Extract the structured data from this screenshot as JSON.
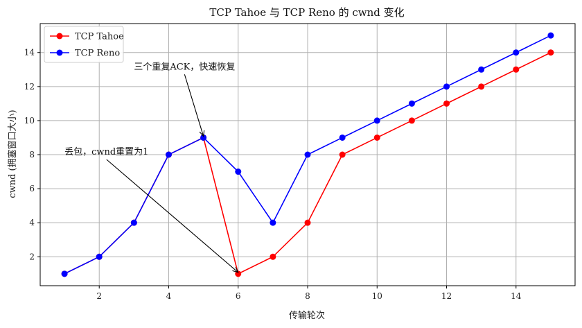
{
  "chart_data": {
    "type": "line",
    "title": "TCP Tahoe 与 TCP Reno 的 cwnd 变化",
    "xlabel": "传输轮次",
    "ylabel": "cwnd (拥塞窗口大小)",
    "xlim": [
      0.3,
      15.7
    ],
    "ylim": [
      0.3,
      15.7
    ],
    "xticks": [
      2,
      4,
      6,
      8,
      10,
      12,
      14
    ],
    "yticks": [
      2,
      4,
      6,
      8,
      10,
      12,
      14
    ],
    "grid": true,
    "legend_position": "top-left",
    "x": [
      1,
      2,
      3,
      4,
      5,
      6,
      7,
      8,
      9,
      10,
      11,
      12,
      13,
      14,
      15
    ],
    "series": [
      {
        "name": "TCP Tahoe",
        "color": "#ff0000",
        "values": [
          1,
          2,
          4,
          8,
          9,
          1,
          2,
          4,
          8,
          9,
          10,
          11,
          12,
          13,
          14
        ]
      },
      {
        "name": "TCP Reno",
        "color": "#0000ff",
        "values": [
          1,
          2,
          4,
          8,
          9,
          7,
          4,
          8,
          9,
          10,
          11,
          12,
          13,
          14,
          15
        ]
      }
    ],
    "annotations": [
      {
        "text": "三个重复ACK，快速恢复",
        "text_at": [
          3,
          13
        ],
        "point": [
          5,
          9
        ]
      },
      {
        "text": "丢包，cwnd重置为1",
        "text_at": [
          1,
          8
        ],
        "point": [
          6,
          1
        ]
      }
    ]
  }
}
